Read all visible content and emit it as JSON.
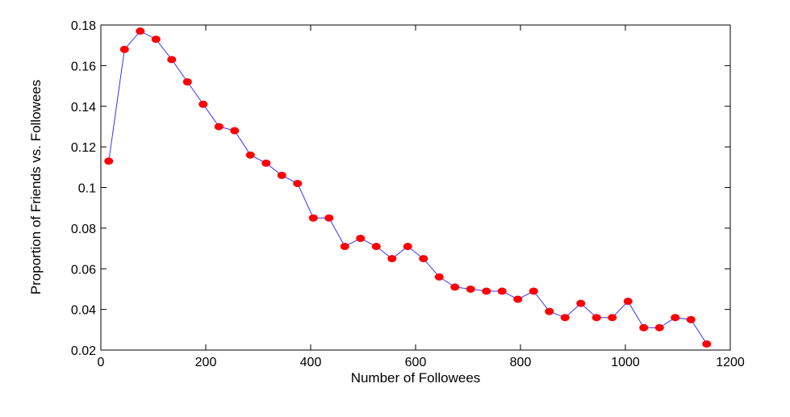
{
  "chart_data": {
    "type": "line",
    "xlabel": "Number of Followees",
    "ylabel": "Proportion of Friends vs. Followees",
    "xlim": [
      0,
      1200
    ],
    "ylim": [
      0.02,
      0.18
    ],
    "xticks": [
      0,
      200,
      400,
      600,
      800,
      1000,
      1200
    ],
    "xtick_labels": [
      "0",
      "200",
      "400",
      "600",
      "800",
      "1000",
      "1200"
    ],
    "yticks": [
      0.02,
      0.04,
      0.06,
      0.08,
      0.1,
      0.12,
      0.14,
      0.16,
      0.18
    ],
    "ytick_labels": [
      "0.02",
      "0.04",
      "0.06",
      "0.08",
      "0.1",
      "0.12",
      "0.14",
      "0.16",
      "0.18"
    ],
    "grid": false,
    "line_color": "#3333ff",
    "marker_color": "#ff0000",
    "series": [
      {
        "x": [
          15,
          45,
          75,
          105,
          135,
          165,
          195,
          225,
          255,
          285,
          315,
          345,
          375,
          405,
          435,
          465,
          495,
          525,
          555,
          585,
          615,
          645,
          675,
          705,
          735,
          765,
          795,
          825,
          855,
          885,
          915,
          945,
          975,
          1005,
          1035,
          1065,
          1095,
          1125,
          1155
        ],
        "y": [
          0.113,
          0.168,
          0.177,
          0.173,
          0.163,
          0.152,
          0.141,
          0.13,
          0.128,
          0.116,
          0.112,
          0.106,
          0.102,
          0.085,
          0.085,
          0.071,
          0.075,
          0.071,
          0.065,
          0.071,
          0.065,
          0.056,
          0.051,
          0.05,
          0.049,
          0.049,
          0.045,
          0.049,
          0.039,
          0.036,
          0.043,
          0.036,
          0.036,
          0.044,
          0.031,
          0.031,
          0.036,
          0.035,
          0.023
        ]
      }
    ]
  }
}
